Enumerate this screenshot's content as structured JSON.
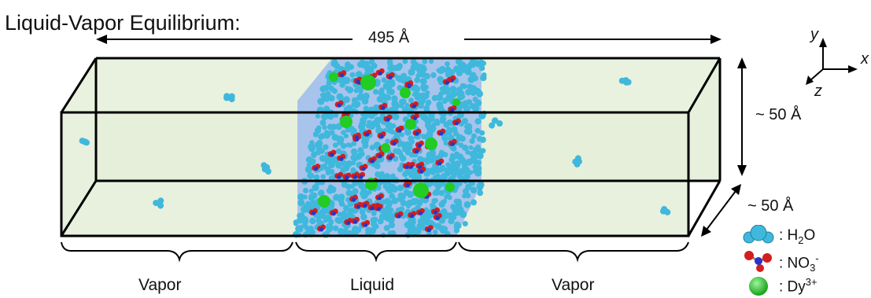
{
  "title": "Liquid-Vapor Equilibrium:",
  "dimensions": {
    "length": "495 Å",
    "height": "~ 50 Å",
    "depth": "~ 50 Å"
  },
  "regions": [
    "Vapor",
    "Liquid",
    "Vapor"
  ],
  "axes": {
    "y": "y",
    "x": "x",
    "z": "z"
  },
  "legend": [
    {
      "species": "water",
      "prefix": ": H",
      "sub": "2",
      "suffix": "O",
      "color": "#3fb8dc"
    },
    {
      "species": "nitrate",
      "prefix": ": NO",
      "sub": "3",
      "sup": "-",
      "color": "#d41d1d"
    },
    {
      "species": "dysprosium",
      "prefix": ": Dy",
      "sup": "3+",
      "color": "#22cc22"
    }
  ],
  "colors": {
    "box_fill": "#e7f0dc",
    "liquid_slab": "#a8c4ec",
    "water": "#3fb8dc",
    "oxygen": "#d41d1d",
    "nitrogen": "#2a33c8",
    "dysprosium": "#22cc22"
  }
}
